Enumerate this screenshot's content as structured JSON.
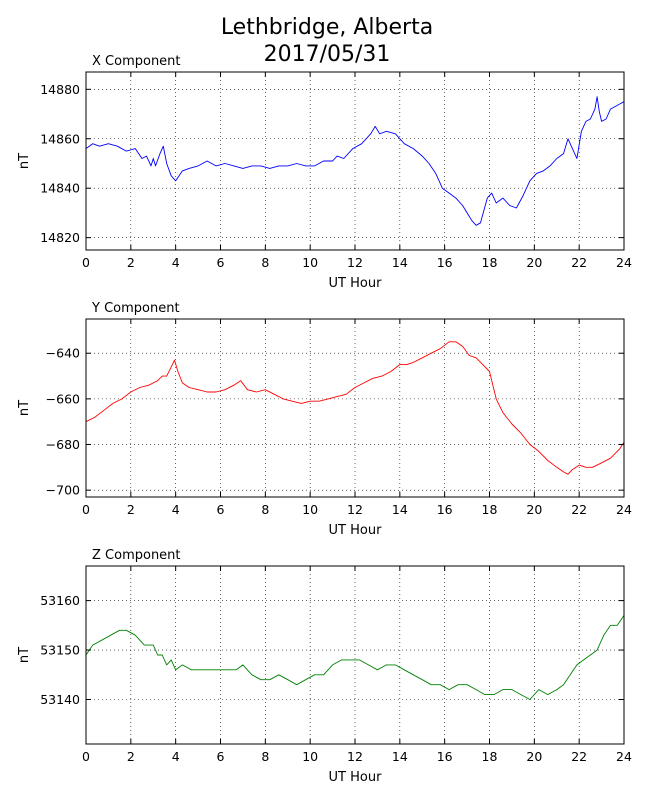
{
  "figure": {
    "title_line1": "Lethbridge, Alberta",
    "title_line2": "2017/05/31"
  },
  "chart_data": [
    {
      "type": "line",
      "subtitle": "X Component",
      "xlabel": "UT Hour",
      "ylabel": "nT",
      "xlim": [
        0,
        24
      ],
      "ylim": [
        14815,
        14887
      ],
      "xticks": [
        0,
        2,
        4,
        6,
        8,
        10,
        12,
        14,
        16,
        18,
        20,
        22,
        24
      ],
      "yticks": [
        14820,
        14840,
        14860,
        14880
      ],
      "grid": true,
      "series": [
        {
          "color": "#0000ff",
          "x": [
            0,
            0.3,
            0.6,
            1.0,
            1.4,
            1.8,
            2.2,
            2.5,
            2.7,
            2.9,
            3.0,
            3.1,
            3.3,
            3.45,
            3.6,
            3.8,
            4.0,
            4.3,
            4.6,
            5.0,
            5.4,
            5.8,
            6.2,
            6.6,
            7.0,
            7.4,
            7.8,
            8.2,
            8.6,
            9.0,
            9.4,
            9.8,
            10.2,
            10.6,
            11.0,
            11.2,
            11.5,
            11.9,
            12.3,
            12.7,
            12.9,
            13.1,
            13.4,
            13.8,
            14.2,
            14.6,
            15.0,
            15.3,
            15.6,
            15.9,
            16.2,
            16.5,
            16.8,
            17.0,
            17.2,
            17.4,
            17.6,
            17.9,
            18.1,
            18.3,
            18.6,
            18.9,
            19.2,
            19.5,
            19.8,
            20.1,
            20.4,
            20.7,
            21.0,
            21.3,
            21.5,
            21.7,
            21.9,
            22.1,
            22.3,
            22.5,
            22.7,
            22.8,
            22.9,
            23.0,
            23.2,
            23.4,
            23.6,
            23.8,
            24.0
          ],
          "values": [
            14856,
            14858,
            14857,
            14858,
            14857,
            14855,
            14856,
            14852,
            14853,
            14849,
            14852,
            14849,
            14854,
            14857,
            14850,
            14845,
            14843,
            14847,
            14848,
            14849,
            14851,
            14849,
            14850,
            14849,
            14848,
            14849,
            14849,
            14848,
            14849,
            14849,
            14850,
            14849,
            14849,
            14851,
            14851,
            14853,
            14852,
            14856,
            14858,
            14862,
            14865,
            14862,
            14863,
            14862,
            14858,
            14856,
            14853,
            14850,
            14846,
            14840,
            14838,
            14836,
            14833,
            14830,
            14827,
            14825,
            14826,
            14836,
            14838,
            14834,
            14836,
            14833,
            14832,
            14837,
            14843,
            14846,
            14847,
            14849,
            14852,
            14854,
            14860,
            14856,
            14852,
            14863,
            14867,
            14868,
            14872,
            14877,
            14871,
            14867,
            14868,
            14872,
            14873,
            14874,
            14875
          ]
        }
      ]
    },
    {
      "type": "line",
      "subtitle": "Y Component",
      "xlabel": "UT Hour",
      "ylabel": "nT",
      "xlim": [
        0,
        24
      ],
      "ylim": [
        -703,
        -625
      ],
      "xticks": [
        0,
        2,
        4,
        6,
        8,
        10,
        12,
        14,
        16,
        18,
        20,
        22,
        24
      ],
      "yticks": [
        -640,
        -660,
        -680,
        -700
      ],
      "grid": true,
      "series": [
        {
          "color": "#ff0000",
          "x": [
            0,
            0.4,
            0.8,
            1.2,
            1.6,
            2.0,
            2.4,
            2.8,
            3.0,
            3.2,
            3.4,
            3.6,
            3.8,
            3.95,
            4.1,
            4.3,
            4.6,
            5.0,
            5.4,
            5.8,
            6.2,
            6.6,
            6.9,
            7.2,
            7.6,
            8.0,
            8.4,
            8.8,
            9.2,
            9.6,
            10.0,
            10.4,
            10.8,
            11.2,
            11.6,
            12.0,
            12.4,
            12.8,
            13.2,
            13.6,
            14.0,
            14.3,
            14.6,
            15.0,
            15.4,
            15.8,
            16.2,
            16.5,
            16.8,
            17.1,
            17.4,
            17.7,
            18.0,
            18.3,
            18.6,
            19.0,
            19.4,
            19.8,
            20.2,
            20.6,
            21.0,
            21.3,
            21.5,
            21.7,
            22.0,
            22.3,
            22.6,
            23.0,
            23.4,
            23.8,
            24.0
          ],
          "values": [
            -670,
            -668,
            -665,
            -662,
            -660,
            -657,
            -655,
            -654,
            -653,
            -652,
            -650,
            -650,
            -646,
            -643,
            -648,
            -653,
            -655,
            -656,
            -657,
            -657,
            -656,
            -654,
            -652,
            -656,
            -657,
            -656,
            -658,
            -660,
            -661,
            -662,
            -661,
            -661,
            -660,
            -659,
            -658,
            -655,
            -653,
            -651,
            -650,
            -648,
            -645,
            -645,
            -644,
            -642,
            -640,
            -638,
            -635,
            -635,
            -637,
            -641,
            -642,
            -645,
            -648,
            -660,
            -666,
            -671,
            -675,
            -680,
            -683,
            -687,
            -690,
            -692,
            -693,
            -691,
            -689,
            -690,
            -690,
            -688,
            -686,
            -682,
            -679
          ]
        }
      ]
    },
    {
      "type": "line",
      "subtitle": "Z Component",
      "xlabel": "UT Hour",
      "ylabel": "nT",
      "xlim": [
        0,
        24
      ],
      "ylim": [
        53131,
        53167
      ],
      "xticks": [
        0,
        2,
        4,
        6,
        8,
        10,
        12,
        14,
        16,
        18,
        20,
        22,
        24
      ],
      "yticks": [
        53140,
        53150,
        53160
      ],
      "grid": true,
      "series": [
        {
          "color": "#008000",
          "x": [
            0,
            0.3,
            0.7,
            1.1,
            1.5,
            1.8,
            2.2,
            2.6,
            3.0,
            3.2,
            3.4,
            3.6,
            3.8,
            4.0,
            4.3,
            4.7,
            5.1,
            5.5,
            5.9,
            6.3,
            6.7,
            7.0,
            7.4,
            7.8,
            8.2,
            8.6,
            9.0,
            9.4,
            9.8,
            10.2,
            10.6,
            11.0,
            11.4,
            11.8,
            12.2,
            12.6,
            13.0,
            13.4,
            13.8,
            14.2,
            14.6,
            15.0,
            15.4,
            15.8,
            16.2,
            16.6,
            17.0,
            17.4,
            17.8,
            18.2,
            18.6,
            19.0,
            19.4,
            19.8,
            20.2,
            20.6,
            21.0,
            21.3,
            21.6,
            21.9,
            22.2,
            22.5,
            22.8,
            23.1,
            23.4,
            23.7,
            24.0
          ],
          "values": [
            53149,
            53151,
            53152,
            53153,
            53154,
            53154,
            53153,
            53151,
            53151,
            53149,
            53149,
            53147,
            53148,
            53146,
            53147,
            53146,
            53146,
            53146,
            53146,
            53146,
            53146,
            53147,
            53145,
            53144,
            53144,
            53145,
            53144,
            53143,
            53144,
            53145,
            53145,
            53147,
            53148,
            53148,
            53148,
            53147,
            53146,
            53147,
            53147,
            53146,
            53145,
            53144,
            53143,
            53143,
            53142,
            53143,
            53143,
            53142,
            53141,
            53141,
            53142,
            53142,
            53141,
            53140,
            53142,
            53141,
            53142,
            53143,
            53145,
            53147,
            53148,
            53149,
            53150,
            53153,
            53155,
            53155,
            53157
          ]
        }
      ]
    }
  ]
}
